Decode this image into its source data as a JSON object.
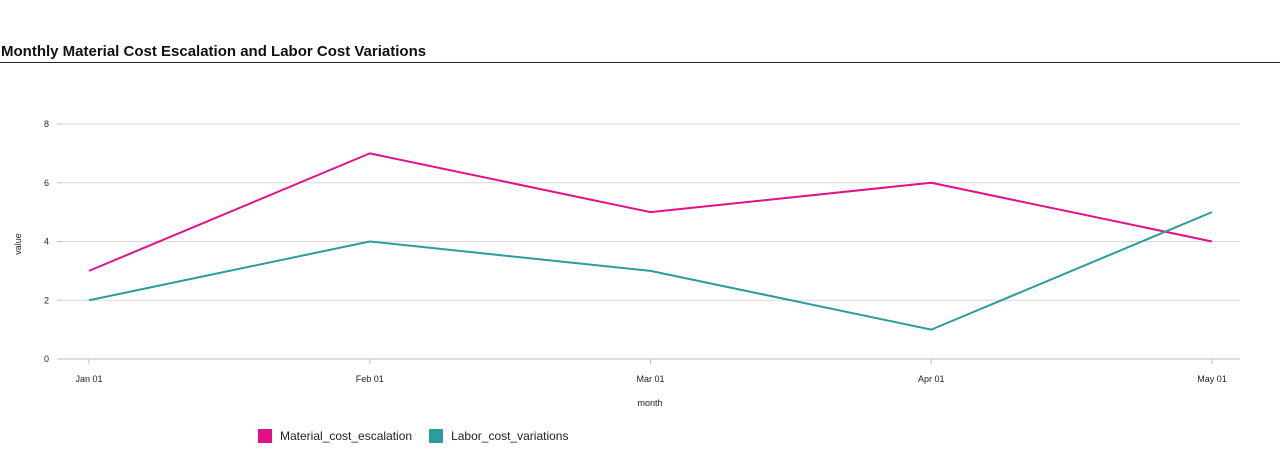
{
  "title": "Monthly Material Cost Escalation and Labor Cost Variations",
  "chart_data": {
    "type": "line",
    "title": "Monthly Material Cost Escalation and Labor Cost Variations",
    "xlabel": "month",
    "ylabel": "value",
    "categories": [
      "Jan 01",
      "Feb 01",
      "Mar 01",
      "Apr 01",
      "May 01"
    ],
    "x": [
      "2024-01-01",
      "2024-02-01",
      "2024-03-01",
      "2024-04-01",
      "2024-05-01"
    ],
    "ylim": [
      0,
      8
    ],
    "yticks": [
      "0",
      "2",
      "4",
      "6",
      "8"
    ],
    "grid": true,
    "legend_position": "bottom-left",
    "series": [
      {
        "name": "Material_cost_escalation",
        "color": "#E0118A",
        "values": [
          3,
          7,
          5,
          6,
          4
        ]
      },
      {
        "name": "Labor_cost_variations",
        "color": "#2A9D9F",
        "values": [
          2,
          4,
          3,
          1,
          5
        ]
      }
    ]
  }
}
